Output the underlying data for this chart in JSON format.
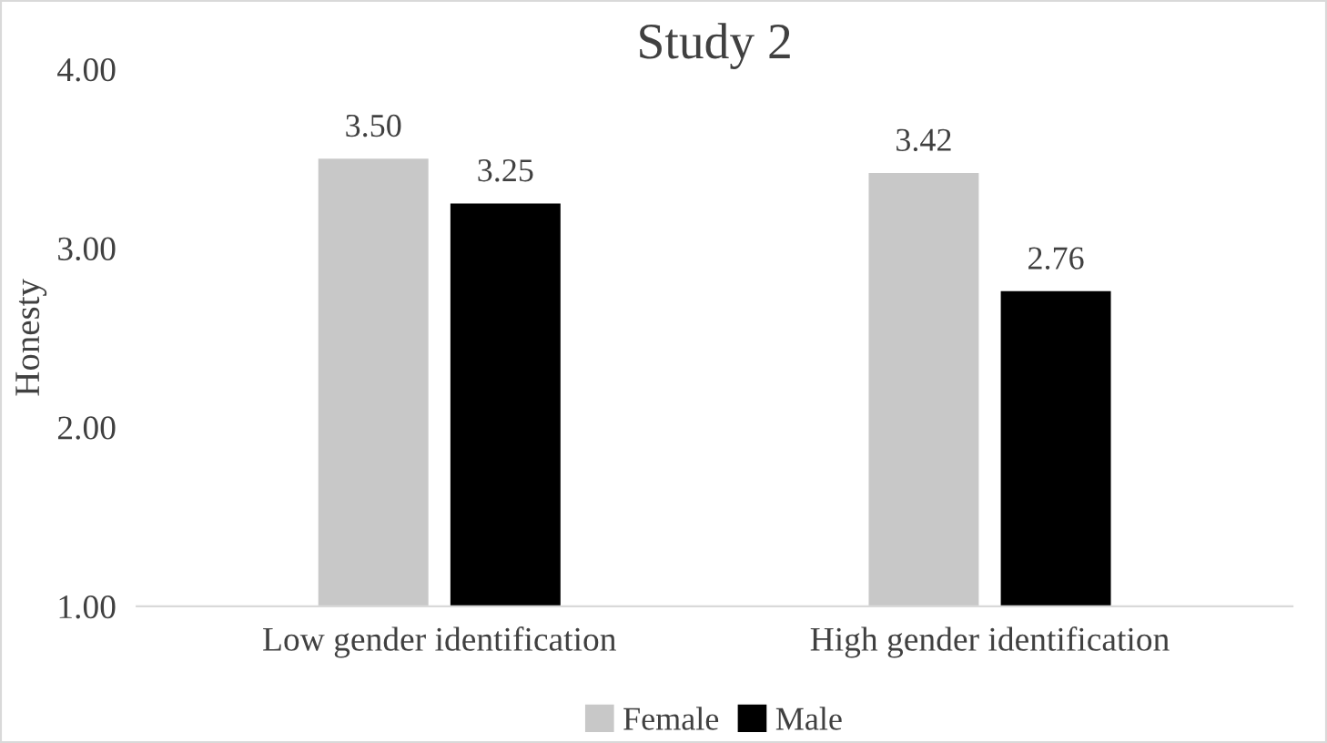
{
  "chart_data": {
    "type": "bar",
    "title": "Study 2",
    "ylabel": "Honesty",
    "categories": [
      "Low gender identification",
      "High gender identification"
    ],
    "series": [
      {
        "name": "Female",
        "color": "#c8c8c8",
        "values": [
          3.5,
          3.42
        ],
        "value_labels": [
          "3.50",
          "3.42"
        ]
      },
      {
        "name": "Male",
        "color": "#000000",
        "values": [
          3.25,
          2.76
        ],
        "value_labels": [
          "3.25",
          "2.76"
        ]
      }
    ],
    "ylim": [
      1,
      4
    ],
    "yticks": [
      {
        "value": 1,
        "label": "1.00"
      },
      {
        "value": 2,
        "label": "2.00"
      },
      {
        "value": 3,
        "label": "3.00"
      },
      {
        "value": 4,
        "label": "4.00"
      }
    ],
    "grid": false,
    "legend": "bottom"
  }
}
